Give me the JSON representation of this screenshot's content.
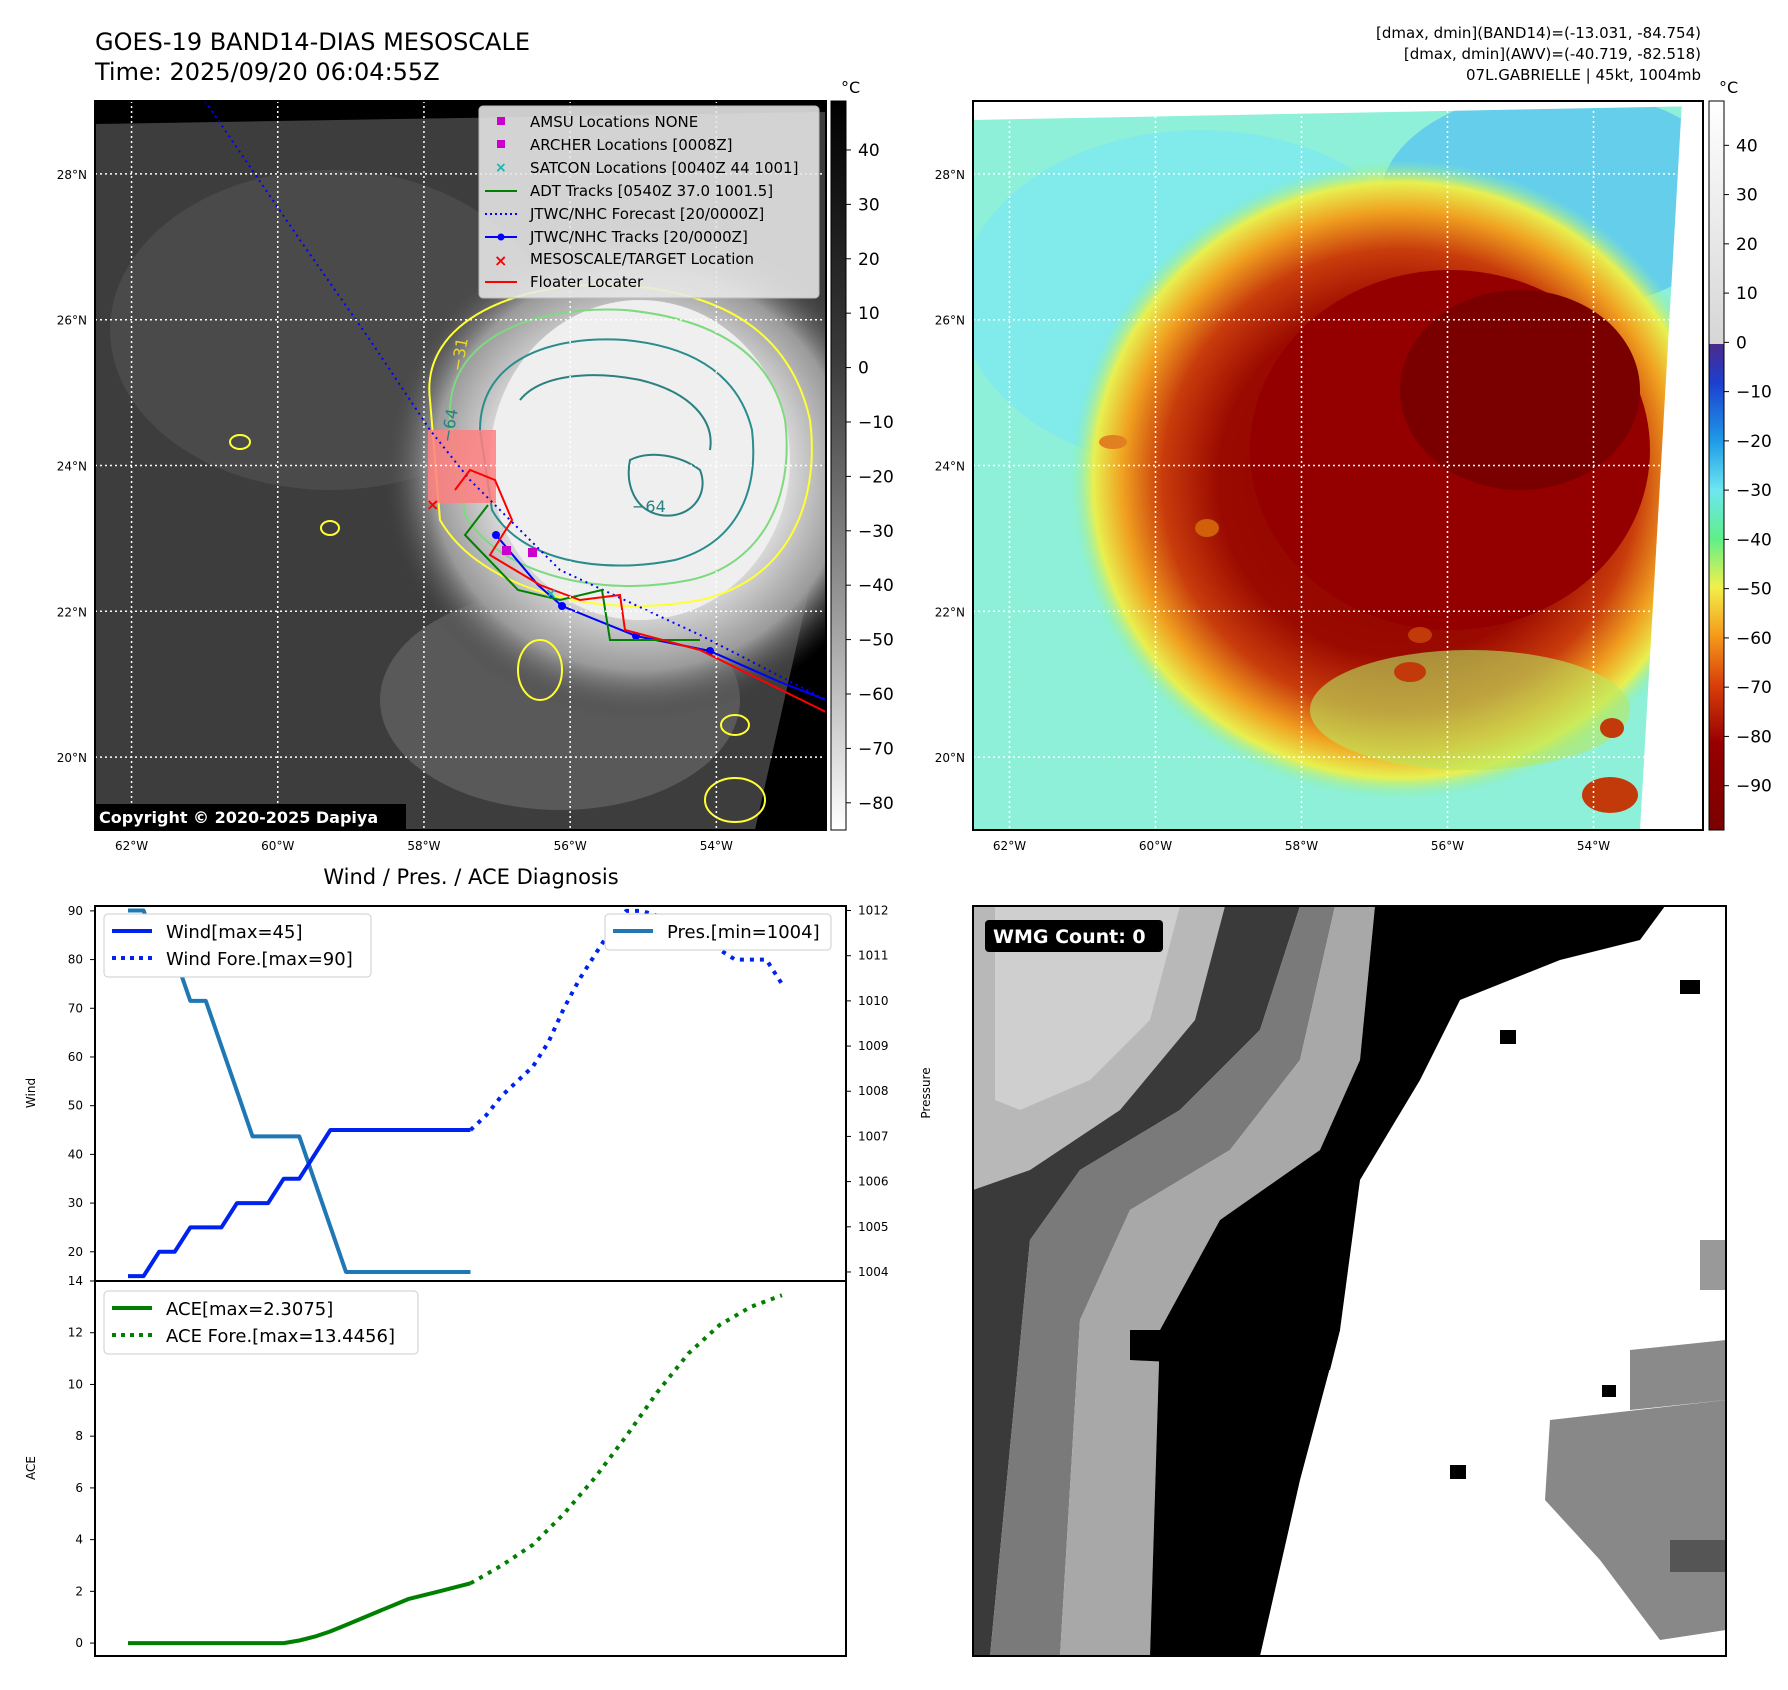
{
  "header": {
    "title": "GOES-19 BAND14-DIAS MESOSCALE",
    "time": "Time: 2025/09/20 06:04:55Z",
    "info_band14": "[dmax, dmin](BAND14)=(-13.031, -84.754)",
    "info_awv": "[dmax, dmin](AWV)=(-40.719, -82.518)",
    "storm": "07L.GABRIELLE | 45kt, 1004mb"
  },
  "map_axes": {
    "lat_labels": [
      "28°N",
      "26°N",
      "24°N",
      "22°N",
      "20°N"
    ],
    "lat_values": [
      28,
      26,
      24,
      22,
      20
    ],
    "lon_labels": [
      "62°W",
      "60°W",
      "58°W",
      "56°W",
      "54°W"
    ],
    "lon_values": [
      -62,
      -60,
      -58,
      -56,
      -54
    ],
    "lat_range": [
      19.0,
      29.0
    ],
    "lon_range": [
      -62.5,
      -52.5
    ]
  },
  "colorbar_ir": {
    "unit": "°C",
    "ticks": [
      "40",
      "30",
      "20",
      "10",
      "0",
      "−10",
      "−20",
      "−30",
      "−40",
      "−50",
      "−60",
      "−70",
      "−80"
    ],
    "range": [
      -85,
      49
    ]
  },
  "colorbar_awv": {
    "unit": "°C",
    "ticks": [
      "40",
      "30",
      "20",
      "10",
      "0",
      "−10",
      "−20",
      "−30",
      "−40",
      "−50",
      "−60",
      "−70",
      "−80",
      "−90"
    ],
    "range": [
      -99,
      49
    ]
  },
  "map_legend": [
    {
      "label": "AMSU Locations NONE",
      "icon": "magenta-square",
      "color": "#cc00cc"
    },
    {
      "label": "ARCHER Locations [0008Z]",
      "icon": "magenta-square",
      "color": "#cc00cc"
    },
    {
      "label": "SATCON Locations [0040Z 44 1001]",
      "icon": "cyan-x",
      "color": "#17b4b4"
    },
    {
      "label": "ADT Tracks [0540Z 37.0 1001.5]",
      "icon": "green-line",
      "color": "#008000"
    },
    {
      "label": "JTWC/NHC Forecast [20/0000Z]",
      "icon": "blue-dotted-line",
      "color": "#0000ff"
    },
    {
      "label": "JTWC/NHC Tracks [20/0000Z]",
      "icon": "blue-line-dot",
      "color": "#0000ff"
    },
    {
      "label": "MESOSCALE/TARGET Location",
      "icon": "red-x",
      "color": "#ff0000"
    },
    {
      "label": "Floater Locater",
      "icon": "red-line",
      "color": "#ff0000"
    }
  ],
  "contour_labels": [
    "−64",
    "−64",
    "−31"
  ],
  "copyright": "Copyright © 2020-2025 Dapiya",
  "wmg_label": "WMG Count: 0",
  "chart_data": [
    {
      "type": "line",
      "title": "Wind / Pres. / ACE Diagnosis",
      "ylabel": "Wind",
      "ylabel_right": "Pressure",
      "ylim": [
        14,
        91
      ],
      "ylim_right": [
        1003.8,
        1012.1
      ],
      "yticks": [
        20,
        30,
        40,
        50,
        60,
        70,
        80,
        90
      ],
      "yticks_right": [
        1004,
        1005,
        1006,
        1007,
        1008,
        1009,
        1010,
        1011,
        1012
      ],
      "x_count": 24,
      "legend_left": [
        "Wind[max=45]",
        "Wind Fore.[max=90]"
      ],
      "legend_right": [
        "Pres.[min=1004]"
      ],
      "series": [
        {
          "name": "Wind",
          "style": "solid",
          "color": "#0022ee",
          "x": [
            0,
            1,
            2,
            3,
            4,
            5,
            6,
            7,
            8,
            9,
            10,
            11,
            12,
            13,
            14,
            15,
            16,
            17,
            18,
            19,
            20,
            21,
            22
          ],
          "values": [
            15,
            15,
            20,
            20,
            25,
            25,
            25,
            30,
            30,
            30,
            35,
            35,
            40,
            45,
            45,
            45,
            45,
            45,
            45,
            45,
            45,
            45,
            45
          ]
        },
        {
          "name": "Wind Fore.",
          "style": "dotted",
          "color": "#0022ee",
          "x": [
            22,
            23,
            24,
            25,
            26,
            27,
            28,
            29,
            30,
            31,
            32,
            33,
            34,
            35,
            36,
            37,
            38,
            39,
            40,
            41,
            42
          ],
          "values": [
            45,
            48,
            52,
            55,
            58,
            63,
            70,
            76,
            81,
            86,
            90,
            90,
            89,
            88,
            87,
            86,
            82,
            80,
            80,
            80,
            75
          ]
        },
        {
          "name": "Pres.",
          "style": "solid",
          "color": "#1f77b4",
          "axis": "right",
          "x": [
            0,
            1,
            2,
            3,
            4,
            5,
            6,
            7,
            8,
            9,
            10,
            11,
            12,
            13,
            14,
            15,
            16,
            17,
            18,
            19,
            20,
            21,
            22
          ],
          "values": [
            1012,
            1012,
            1011,
            1011,
            1010,
            1010,
            1009,
            1008,
            1007,
            1007,
            1007,
            1007,
            1006,
            1005,
            1004,
            1004,
            1004,
            1004,
            1004,
            1004,
            1004,
            1004,
            1004
          ]
        }
      ]
    },
    {
      "type": "line",
      "ylabel": "ACE",
      "ylim": [
        -0.5,
        14
      ],
      "yticks": [
        0,
        2,
        4,
        6,
        8,
        10,
        12,
        14
      ],
      "legend": [
        "ACE[max=2.3075]",
        "ACE Fore.[max=13.4456]"
      ],
      "series": [
        {
          "name": "ACE",
          "style": "solid",
          "color": "#008000",
          "x": [
            0,
            2,
            4,
            6,
            8,
            10,
            11,
            12,
            13,
            14,
            16,
            18,
            20,
            22
          ],
          "values": [
            0,
            0,
            0,
            0,
            0,
            0,
            0.1,
            0.25,
            0.45,
            0.7,
            1.2,
            1.7,
            2.0,
            2.31
          ]
        },
        {
          "name": "ACE Fore.",
          "style": "dotted",
          "color": "#008000",
          "x": [
            22,
            24,
            26,
            28,
            30,
            32,
            34,
            36,
            38,
            40,
            42
          ],
          "values": [
            2.31,
            3.0,
            3.8,
            5.0,
            6.4,
            8.0,
            9.7,
            11.2,
            12.3,
            13.0,
            13.45
          ]
        }
      ]
    }
  ]
}
